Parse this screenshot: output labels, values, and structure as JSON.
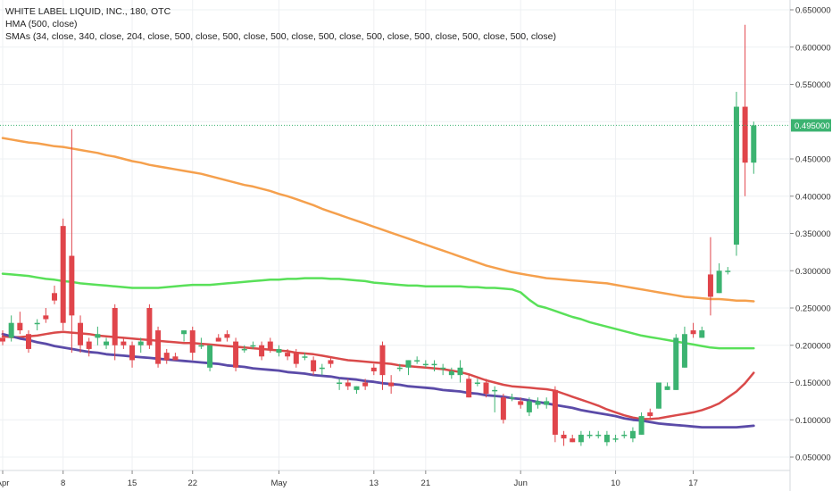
{
  "legend": {
    "title": "WHITE LABEL LIQUID, INC., 180, OTC",
    "hma": "HMA (500, close)",
    "smas": "SMAs (34, close, 340, close, 204, close, 500, close, 500, close, 500, close, 500, close, 500, close, 500, close, 500, close, 500, close)"
  },
  "chart_data": {
    "type": "candlestick",
    "title": "WHITE LABEL LIQUID, INC., 180, OTC",
    "xlabel": "",
    "ylabel": "",
    "ylim": [
      0.04,
      0.66
    ],
    "y_ticks": [
      "0.050000",
      "0.100000",
      "0.150000",
      "0.200000",
      "0.250000",
      "0.300000",
      "0.350000",
      "0.400000",
      "0.450000",
      "0.500000",
      "0.550000",
      "0.600000",
      "0.650000"
    ],
    "x_ticks": [
      {
        "label": "Apr",
        "bar": 0
      },
      {
        "label": "8",
        "bar": 7
      },
      {
        "label": "15",
        "bar": 15
      },
      {
        "label": "22",
        "bar": 22
      },
      {
        "label": "May",
        "bar": 32
      },
      {
        "label": "13",
        "bar": 43
      },
      {
        "label": "21",
        "bar": 49
      },
      {
        "label": "Jun",
        "bar": 60
      },
      {
        "label": "10",
        "bar": 71
      },
      {
        "label": "17",
        "bar": 80
      }
    ],
    "last_price": "0.495000",
    "up_color": "#3cb371",
    "down_color": "#e0454b",
    "candles": [
      [
        0.21,
        0.22,
        0.2,
        0.205
      ],
      [
        0.21,
        0.24,
        0.205,
        0.23
      ],
      [
        0.23,
        0.245,
        0.215,
        0.22
      ],
      [
        0.215,
        0.22,
        0.19,
        0.195
      ],
      [
        0.23,
        0.235,
        0.22,
        0.23
      ],
      [
        0.24,
        0.25,
        0.23,
        0.235
      ],
      [
        0.27,
        0.28,
        0.255,
        0.26
      ],
      [
        0.36,
        0.37,
        0.22,
        0.23
      ],
      [
        0.32,
        0.49,
        0.19,
        0.24
      ],
      [
        0.23,
        0.24,
        0.19,
        0.2
      ],
      [
        0.205,
        0.21,
        0.185,
        0.195
      ],
      [
        0.21,
        0.225,
        0.2,
        0.215
      ],
      [
        0.2,
        0.21,
        0.195,
        0.205
      ],
      [
        0.25,
        0.255,
        0.18,
        0.2
      ],
      [
        0.205,
        0.21,
        0.195,
        0.2
      ],
      [
        0.2,
        0.205,
        0.17,
        0.18
      ],
      [
        0.2,
        0.21,
        0.19,
        0.205
      ],
      [
        0.25,
        0.255,
        0.195,
        0.2
      ],
      [
        0.22,
        0.225,
        0.17,
        0.175
      ],
      [
        0.19,
        0.195,
        0.175,
        0.18
      ],
      [
        0.185,
        0.19,
        0.18,
        0.18
      ],
      [
        0.215,
        0.22,
        0.205,
        0.22
      ],
      [
        0.22,
        0.225,
        0.18,
        0.19
      ],
      [
        0.2,
        0.21,
        0.195,
        0.2
      ],
      [
        0.17,
        0.2,
        0.165,
        0.2
      ],
      [
        0.21,
        0.215,
        0.205,
        0.205
      ],
      [
        0.215,
        0.22,
        0.205,
        0.21
      ],
      [
        0.205,
        0.21,
        0.165,
        0.17
      ],
      [
        0.195,
        0.2,
        0.19,
        0.195
      ],
      [
        0.2,
        0.205,
        0.195,
        0.2
      ],
      [
        0.2,
        0.205,
        0.18,
        0.185
      ],
      [
        0.205,
        0.21,
        0.19,
        0.195
      ],
      [
        0.19,
        0.2,
        0.185,
        0.195
      ],
      [
        0.19,
        0.195,
        0.18,
        0.185
      ],
      [
        0.19,
        0.195,
        0.17,
        0.175
      ],
      [
        0.185,
        0.19,
        0.18,
        0.185
      ],
      [
        0.18,
        0.185,
        0.16,
        0.165
      ],
      [
        0.17,
        0.175,
        0.16,
        0.17
      ],
      [
        0.18,
        0.185,
        0.17,
        0.175
      ],
      [
        0.15,
        0.155,
        0.14,
        0.15
      ],
      [
        0.15,
        0.155,
        0.14,
        0.145
      ],
      [
        0.14,
        0.145,
        0.135,
        0.145
      ],
      [
        0.15,
        0.155,
        0.14,
        0.145
      ],
      [
        0.17,
        0.175,
        0.16,
        0.165
      ],
      [
        0.2,
        0.205,
        0.14,
        0.16
      ],
      [
        0.15,
        0.16,
        0.135,
        0.145
      ],
      [
        0.17,
        0.175,
        0.165,
        0.17
      ],
      [
        0.17,
        0.18,
        0.16,
        0.18
      ],
      [
        0.18,
        0.185,
        0.175,
        0.18
      ],
      [
        0.175,
        0.18,
        0.17,
        0.175
      ],
      [
        0.175,
        0.18,
        0.165,
        0.175
      ],
      [
        0.17,
        0.175,
        0.16,
        0.17
      ],
      [
        0.16,
        0.17,
        0.155,
        0.165
      ],
      [
        0.16,
        0.18,
        0.15,
        0.17
      ],
      [
        0.155,
        0.16,
        0.13,
        0.13
      ],
      [
        0.15,
        0.155,
        0.145,
        0.15
      ],
      [
        0.15,
        0.155,
        0.13,
        0.135
      ],
      [
        0.14,
        0.145,
        0.11,
        0.14
      ],
      [
        0.13,
        0.135,
        0.095,
        0.1
      ],
      [
        0.13,
        0.135,
        0.125,
        0.13
      ],
      [
        0.125,
        0.13,
        0.115,
        0.12
      ],
      [
        0.11,
        0.13,
        0.105,
        0.125
      ],
      [
        0.12,
        0.13,
        0.115,
        0.125
      ],
      [
        0.12,
        0.13,
        0.115,
        0.125
      ],
      [
        0.14,
        0.145,
        0.07,
        0.08
      ],
      [
        0.08,
        0.085,
        0.065,
        0.075
      ],
      [
        0.075,
        0.08,
        0.07,
        0.07
      ],
      [
        0.07,
        0.085,
        0.065,
        0.08
      ],
      [
        0.08,
        0.085,
        0.075,
        0.08
      ],
      [
        0.08,
        0.085,
        0.075,
        0.08
      ],
      [
        0.07,
        0.085,
        0.065,
        0.08
      ],
      [
        0.075,
        0.08,
        0.07,
        0.075
      ],
      [
        0.08,
        0.085,
        0.075,
        0.08
      ],
      [
        0.075,
        0.09,
        0.07,
        0.085
      ],
      [
        0.08,
        0.11,
        0.08,
        0.105
      ],
      [
        0.11,
        0.115,
        0.1,
        0.105
      ],
      [
        0.115,
        0.15,
        0.115,
        0.15
      ],
      [
        0.14,
        0.15,
        0.14,
        0.145
      ],
      [
        0.14,
        0.215,
        0.14,
        0.21
      ],
      [
        0.17,
        0.225,
        0.17,
        0.215
      ],
      [
        0.22,
        0.23,
        0.21,
        0.215
      ],
      [
        0.21,
        0.225,
        0.21,
        0.22
      ],
      [
        0.295,
        0.345,
        0.24,
        0.265
      ],
      [
        0.27,
        0.31,
        0.27,
        0.3
      ],
      [
        0.3,
        0.305,
        0.295,
        0.3
      ],
      [
        0.335,
        0.54,
        0.32,
        0.52
      ],
      [
        0.52,
        0.63,
        0.4,
        0.445
      ],
      [
        0.445,
        0.5,
        0.43,
        0.495
      ]
    ],
    "series": [
      {
        "type": "line",
        "color": "#f5a04d",
        "width": 2.5,
        "values": [
          0.478,
          0.476,
          0.474,
          0.472,
          0.471,
          0.469,
          0.467,
          0.466,
          0.464,
          0.462,
          0.46,
          0.458,
          0.455,
          0.453,
          0.45,
          0.447,
          0.445,
          0.442,
          0.44,
          0.438,
          0.436,
          0.434,
          0.432,
          0.43,
          0.427,
          0.424,
          0.421,
          0.418,
          0.415,
          0.413,
          0.41,
          0.407,
          0.403,
          0.4,
          0.396,
          0.392,
          0.388,
          0.383,
          0.379,
          0.375,
          0.371,
          0.367,
          0.363,
          0.359,
          0.355,
          0.351,
          0.347,
          0.343,
          0.339,
          0.335,
          0.331,
          0.327,
          0.323,
          0.319,
          0.315,
          0.311,
          0.307,
          0.304,
          0.301,
          0.298,
          0.296,
          0.294,
          0.292,
          0.29,
          0.289,
          0.288,
          0.287,
          0.286,
          0.285,
          0.284,
          0.283,
          0.281,
          0.279,
          0.277,
          0.275,
          0.273,
          0.271,
          0.269,
          0.267,
          0.265,
          0.264,
          0.263,
          0.262,
          0.262,
          0.261,
          0.26,
          0.26,
          0.259
        ]
      },
      {
        "type": "line",
        "color": "#59e059",
        "width": 2.5,
        "values": [
          0.296,
          0.295,
          0.294,
          0.293,
          0.291,
          0.289,
          0.288,
          0.286,
          0.285,
          0.283,
          0.282,
          0.281,
          0.28,
          0.279,
          0.278,
          0.277,
          0.277,
          0.277,
          0.277,
          0.278,
          0.279,
          0.28,
          0.281,
          0.281,
          0.281,
          0.282,
          0.283,
          0.284,
          0.285,
          0.286,
          0.287,
          0.288,
          0.288,
          0.289,
          0.289,
          0.29,
          0.29,
          0.29,
          0.289,
          0.289,
          0.288,
          0.287,
          0.286,
          0.284,
          0.283,
          0.282,
          0.281,
          0.28,
          0.28,
          0.279,
          0.279,
          0.279,
          0.279,
          0.279,
          0.278,
          0.278,
          0.277,
          0.277,
          0.276,
          0.275,
          0.271,
          0.261,
          0.253,
          0.25,
          0.246,
          0.242,
          0.238,
          0.235,
          0.231,
          0.228,
          0.225,
          0.222,
          0.219,
          0.216,
          0.213,
          0.211,
          0.209,
          0.207,
          0.205,
          0.203,
          0.201,
          0.199,
          0.197,
          0.196,
          0.196,
          0.196,
          0.196,
          0.196
        ]
      },
      {
        "type": "line",
        "color": "#d94a4a",
        "width": 2.5,
        "values": [
          0.212,
          0.211,
          0.211,
          0.212,
          0.213,
          0.215,
          0.217,
          0.218,
          0.217,
          0.216,
          0.215,
          0.213,
          0.212,
          0.211,
          0.21,
          0.209,
          0.208,
          0.207,
          0.206,
          0.205,
          0.204,
          0.203,
          0.203,
          0.202,
          0.201,
          0.2,
          0.199,
          0.198,
          0.197,
          0.196,
          0.195,
          0.194,
          0.193,
          0.192,
          0.19,
          0.189,
          0.188,
          0.186,
          0.184,
          0.182,
          0.18,
          0.179,
          0.178,
          0.177,
          0.176,
          0.175,
          0.173,
          0.172,
          0.171,
          0.17,
          0.169,
          0.168,
          0.166,
          0.164,
          0.161,
          0.157,
          0.153,
          0.15,
          0.147,
          0.145,
          0.144,
          0.143,
          0.142,
          0.141,
          0.139,
          0.135,
          0.131,
          0.127,
          0.123,
          0.119,
          0.114,
          0.11,
          0.106,
          0.103,
          0.101,
          0.101,
          0.102,
          0.104,
          0.106,
          0.108,
          0.11,
          0.113,
          0.117,
          0.122,
          0.13,
          0.138,
          0.149,
          0.163
        ]
      },
      {
        "type": "line",
        "color": "#5b4ba8",
        "width": 2.8,
        "values": [
          0.215,
          0.212,
          0.209,
          0.207,
          0.204,
          0.202,
          0.199,
          0.197,
          0.195,
          0.193,
          0.191,
          0.19,
          0.188,
          0.187,
          0.186,
          0.185,
          0.184,
          0.183,
          0.182,
          0.181,
          0.18,
          0.179,
          0.178,
          0.177,
          0.176,
          0.175,
          0.173,
          0.172,
          0.171,
          0.169,
          0.168,
          0.167,
          0.166,
          0.164,
          0.163,
          0.162,
          0.16,
          0.159,
          0.158,
          0.156,
          0.155,
          0.154,
          0.152,
          0.151,
          0.149,
          0.148,
          0.147,
          0.145,
          0.144,
          0.143,
          0.142,
          0.14,
          0.139,
          0.138,
          0.136,
          0.135,
          0.133,
          0.132,
          0.131,
          0.129,
          0.128,
          0.126,
          0.124,
          0.122,
          0.12,
          0.118,
          0.116,
          0.113,
          0.111,
          0.109,
          0.107,
          0.105,
          0.102,
          0.1,
          0.099,
          0.097,
          0.095,
          0.094,
          0.093,
          0.092,
          0.091,
          0.09,
          0.09,
          0.09,
          0.09,
          0.09,
          0.091,
          0.092
        ]
      }
    ]
  }
}
